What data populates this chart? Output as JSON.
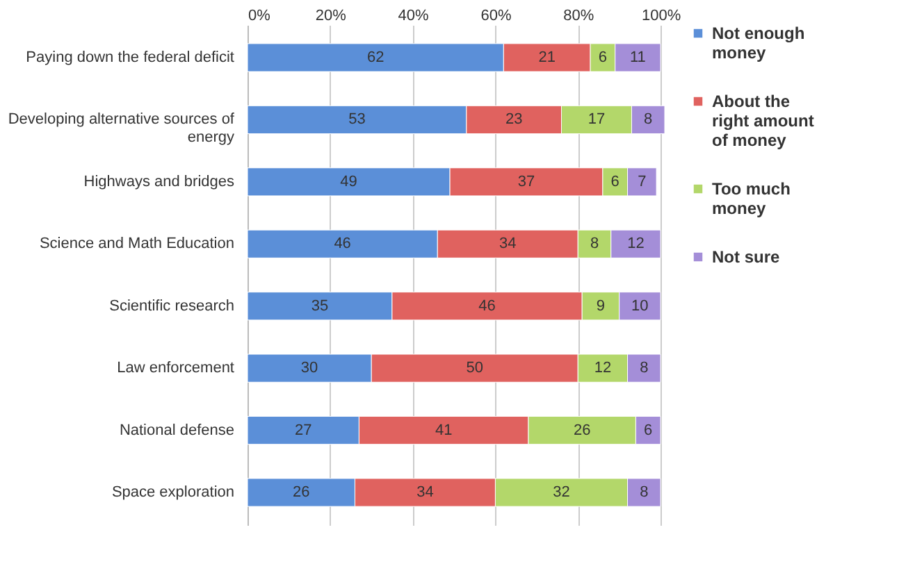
{
  "chart_data": {
    "type": "bar",
    "orientation": "horizontal",
    "stacked": true,
    "data_labels": true,
    "grid": "x",
    "legend": "right",
    "categories": [
      "Paying down the federal deficit",
      "Developing alternative sources of energy",
      "Highways and bridges",
      "Science and Math Education",
      "Scientific research",
      "Law enforcement",
      "National defense",
      "Space exploration"
    ],
    "series": [
      {
        "name": "Not enough money",
        "color": "#5b8fd8",
        "values": [
          62,
          53,
          49,
          46,
          35,
          30,
          27,
          26
        ]
      },
      {
        "name": "About the right amount of money",
        "color": "#e0625f",
        "values": [
          21,
          23,
          37,
          34,
          46,
          50,
          41,
          34
        ]
      },
      {
        "name": "Too much money",
        "color": "#b3d76a",
        "values": [
          6,
          17,
          6,
          8,
          9,
          12,
          26,
          32
        ]
      },
      {
        "name": "Not sure",
        "color": "#a48ed8",
        "values": [
          11,
          8,
          7,
          12,
          10,
          8,
          6,
          8
        ]
      }
    ],
    "xlim": [
      0,
      101
    ],
    "xticks": [
      {
        "value": 0,
        "label": "0%"
      },
      {
        "value": 20,
        "label": "20%"
      },
      {
        "value": 40,
        "label": "40%"
      },
      {
        "value": 60,
        "label": "60%"
      },
      {
        "value": 80,
        "label": "80%"
      },
      {
        "value": 100,
        "label": "100%"
      }
    ]
  }
}
